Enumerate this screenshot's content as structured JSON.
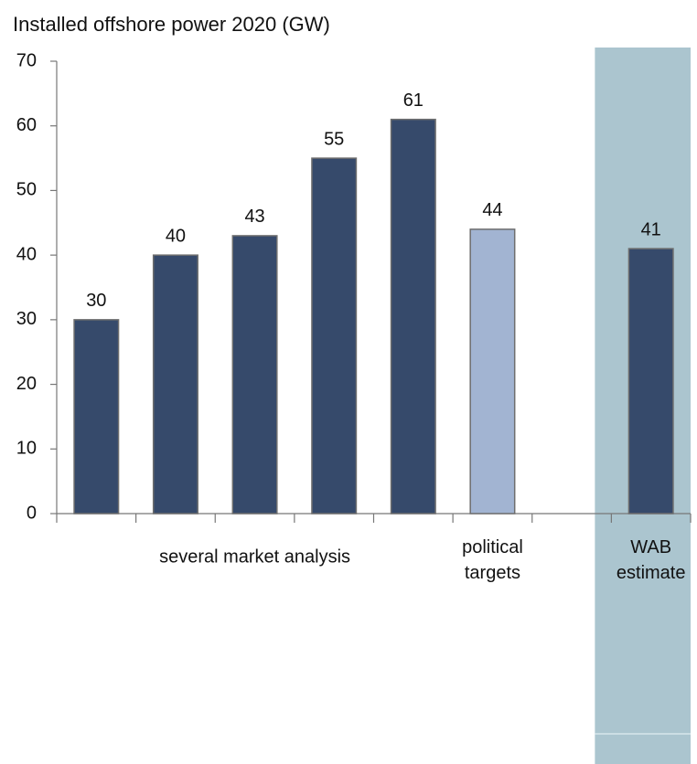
{
  "chart_data": {
    "type": "bar",
    "title": "Installed offshore power 2020 (GW)",
    "categories": [
      null,
      null,
      null,
      null,
      null,
      null,
      null,
      null
    ],
    "values": [
      30,
      40,
      43,
      55,
      61,
      44,
      null,
      41
    ],
    "colors": [
      "#364a6b",
      "#364a6b",
      "#364a6b",
      "#364a6b",
      "#364a6b",
      "#a2b4d2",
      null,
      "#364a6b"
    ],
    "groups": [
      {
        "label": "several market analysis",
        "first": 0,
        "last": 4
      },
      {
        "label": "political targets",
        "first": 5,
        "last": 5
      },
      {
        "label": "WAB estimate",
        "first": 7,
        "last": 7
      }
    ],
    "highlight_color": "#abc5cf",
    "ylim": [
      0,
      70
    ],
    "yticks": [
      0,
      10,
      20,
      30,
      40,
      50,
      60,
      70
    ],
    "grid": false
  }
}
